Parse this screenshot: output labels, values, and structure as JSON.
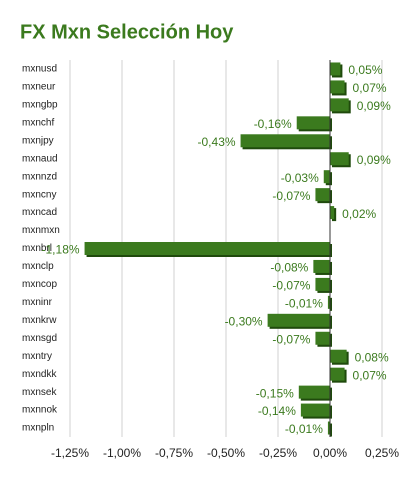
{
  "chart_data": {
    "type": "hbar",
    "title": "FX Mxn Selección Hoy",
    "categories": [
      "mxnusd",
      "mxneur",
      "mxngbp",
      "mxnchf",
      "mxnjpy",
      "mxnaud",
      "mxnnzd",
      "mxncny",
      "mxncad",
      "mxnmxn",
      "mxnbrl",
      "mxnclp",
      "mxncop",
      "mxninr",
      "mxnkrw",
      "mxnsgd",
      "mxntry",
      "mxndkk",
      "mxnsek",
      "mxnnok",
      "mxnpln"
    ],
    "values": [
      0.05,
      0.07,
      0.09,
      -0.16,
      -0.43,
      0.09,
      -0.03,
      -0.07,
      0.02,
      null,
      -1.18,
      -0.08,
      -0.07,
      -0.01,
      -0.3,
      -0.07,
      0.08,
      0.07,
      -0.15,
      -0.14,
      -0.01
    ],
    "value_labels": [
      "0,05%",
      "0,07%",
      "0,09%",
      "-0,16%",
      "-0,43%",
      "0,09%",
      "-0,03%",
      "-0,07%",
      "0,02%",
      null,
      "-1,18%",
      "-0,08%",
      "-0,07%",
      "-0,01%",
      "-0,30%",
      "-0,07%",
      "0,08%",
      "0,07%",
      "-0,15%",
      "-0,14%",
      "-0,01%"
    ],
    "color": "#3b7a1e",
    "xlim": [
      -1.25,
      0.25
    ],
    "xticks": [
      {
        "value": -1.25,
        "label": "-1,25%"
      },
      {
        "value": -1,
        "label": "-1,00%"
      },
      {
        "value": -0.75,
        "label": "-0,75%"
      },
      {
        "value": -0.5,
        "label": "-0,50%"
      },
      {
        "value": -0.25,
        "label": "-0,25%"
      },
      {
        "value": 0,
        "label": "0,00%"
      },
      {
        "value": 0.25,
        "label": "0,25%"
      }
    ],
    "grid": true
  }
}
